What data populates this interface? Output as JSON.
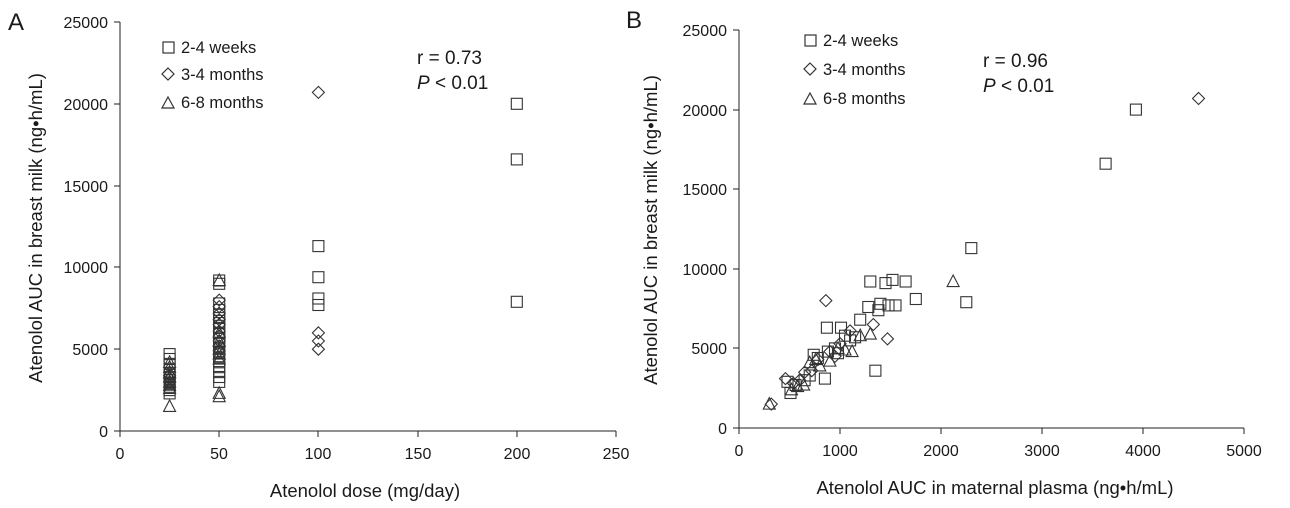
{
  "chart_data": [
    {
      "panel_label": "A",
      "type": "scatter",
      "xlabel": "Atenolol dose (mg/day)",
      "ylabel": "Atenolol AUC in breast milk (ng•h/mL)",
      "xlim": [
        0,
        250
      ],
      "ylim": [
        0,
        25000
      ],
      "xticks": [
        0,
        50,
        100,
        150,
        200,
        250
      ],
      "yticks": [
        0,
        5000,
        10000,
        15000,
        20000,
        25000
      ],
      "grid": false,
      "legend_position": "top-left",
      "annotation": {
        "r_text": "r = 0.73",
        "p_symbol": "P",
        "p_rest": " < 0.01"
      },
      "series": [
        {
          "name": "2-4 weeks",
          "marker": "square",
          "points": [
            [
              25,
              4700
            ],
            [
              25,
              4400
            ],
            [
              25,
              4100
            ],
            [
              25,
              3800
            ],
            [
              25,
              3500
            ],
            [
              25,
              3300
            ],
            [
              25,
              3100
            ],
            [
              25,
              2900
            ],
            [
              25,
              2700
            ],
            [
              25,
              2500
            ],
            [
              25,
              2300
            ],
            [
              50,
              9200
            ],
            [
              50,
              9000
            ],
            [
              50,
              7800
            ],
            [
              50,
              7400
            ],
            [
              50,
              7100
            ],
            [
              50,
              6900
            ],
            [
              50,
              6600
            ],
            [
              50,
              6300
            ],
            [
              50,
              6000
            ],
            [
              50,
              5700
            ],
            [
              50,
              5400
            ],
            [
              50,
              5100
            ],
            [
              50,
              4800
            ],
            [
              50,
              4500
            ],
            [
              50,
              4200
            ],
            [
              50,
              3900
            ],
            [
              50,
              3600
            ],
            [
              50,
              3300
            ],
            [
              50,
              3000
            ],
            [
              100,
              11300
            ],
            [
              100,
              9400
            ],
            [
              100,
              8100
            ],
            [
              100,
              7700
            ],
            [
              200,
              20000
            ],
            [
              200,
              16600
            ],
            [
              200,
              7900
            ]
          ]
        },
        {
          "name": "3-4 months",
          "marker": "diamond",
          "points": [
            [
              25,
              3400
            ],
            [
              25,
              3200
            ],
            [
              25,
              3000
            ],
            [
              50,
              8000
            ],
            [
              50,
              7600
            ],
            [
              50,
              7200
            ],
            [
              50,
              6800
            ],
            [
              50,
              6500
            ],
            [
              50,
              6100
            ],
            [
              50,
              5800
            ],
            [
              50,
              5500
            ],
            [
              50,
              5200
            ],
            [
              50,
              4900
            ],
            [
              100,
              20700
            ],
            [
              100,
              6000
            ],
            [
              100,
              5500
            ],
            [
              100,
              5000
            ]
          ]
        },
        {
          "name": "6-8 months",
          "marker": "triangle",
          "points": [
            [
              25,
              4200
            ],
            [
              25,
              3900
            ],
            [
              25,
              3600
            ],
            [
              25,
              3300
            ],
            [
              25,
              3000
            ],
            [
              25,
              2800
            ],
            [
              25,
              2600
            ],
            [
              25,
              1500
            ],
            [
              50,
              9200
            ],
            [
              50,
              6000
            ],
            [
              50,
              5500
            ],
            [
              50,
              5000
            ],
            [
              50,
              4700
            ],
            [
              50,
              4400
            ],
            [
              50,
              2300
            ],
            [
              50,
              2100
            ]
          ]
        }
      ]
    },
    {
      "panel_label": "B",
      "type": "scatter",
      "xlabel": "Atenolol AUC in maternal plasma (ng•h/mL)",
      "ylabel": "Atenolol AUC in breast milk (ng•h/mL)",
      "xlim": [
        0,
        5000
      ],
      "ylim": [
        0,
        25000
      ],
      "xticks": [
        0,
        1000,
        2000,
        3000,
        4000,
        5000
      ],
      "yticks": [
        0,
        5000,
        10000,
        15000,
        20000,
        25000
      ],
      "grid": false,
      "legend_position": "top-left",
      "annotation": {
        "r_text": "r = 0.96",
        "p_symbol": "P",
        "p_rest": " < 0.01"
      },
      "series": [
        {
          "name": "2-4 weeks",
          "marker": "square",
          "points": [
            [
              480,
              2900
            ],
            [
              510,
              2200
            ],
            [
              560,
              2700
            ],
            [
              650,
              3000
            ],
            [
              700,
              3300
            ],
            [
              740,
              4600
            ],
            [
              780,
              4400
            ],
            [
              850,
              3100
            ],
            [
              880,
              4800
            ],
            [
              870,
              6300
            ],
            [
              950,
              5000
            ],
            [
              980,
              4700
            ],
            [
              1010,
              6300
            ],
            [
              1050,
              5800
            ],
            [
              1100,
              5500
            ],
            [
              1150,
              5700
            ],
            [
              1200,
              6800
            ],
            [
              1280,
              7600
            ],
            [
              1300,
              9200
            ],
            [
              1350,
              3600
            ],
            [
              1380,
              7400
            ],
            [
              1400,
              7800
            ],
            [
              1450,
              9100
            ],
            [
              1480,
              7700
            ],
            [
              1520,
              9300
            ],
            [
              1550,
              7700
            ],
            [
              1650,
              9200
            ],
            [
              1750,
              8100
            ],
            [
              2250,
              7900
            ],
            [
              2300,
              11300
            ],
            [
              3630,
              16600
            ],
            [
              3930,
              20000
            ]
          ]
        },
        {
          "name": "3-4 months",
          "marker": "diamond",
          "points": [
            [
              320,
              1500
            ],
            [
              460,
              3100
            ],
            [
              540,
              2800
            ],
            [
              600,
              3000
            ],
            [
              650,
              3500
            ],
            [
              720,
              3600
            ],
            [
              780,
              4300
            ],
            [
              860,
              8000
            ],
            [
              900,
              4800
            ],
            [
              950,
              4500
            ],
            [
              1000,
              5300
            ],
            [
              1100,
              6100
            ],
            [
              1330,
              6500
            ],
            [
              1470,
              5600
            ],
            [
              4550,
              20700
            ]
          ]
        },
        {
          "name": "6-8 months",
          "marker": "triangle",
          "points": [
            [
              300,
              1500
            ],
            [
              520,
              2400
            ],
            [
              580,
              2600
            ],
            [
              640,
              2700
            ],
            [
              700,
              4100
            ],
            [
              760,
              4300
            ],
            [
              800,
              3900
            ],
            [
              900,
              4200
            ],
            [
              980,
              5000
            ],
            [
              1050,
              4900
            ],
            [
              1120,
              4800
            ],
            [
              1200,
              5800
            ],
            [
              1300,
              5900
            ],
            [
              2120,
              9200
            ]
          ]
        }
      ]
    }
  ]
}
